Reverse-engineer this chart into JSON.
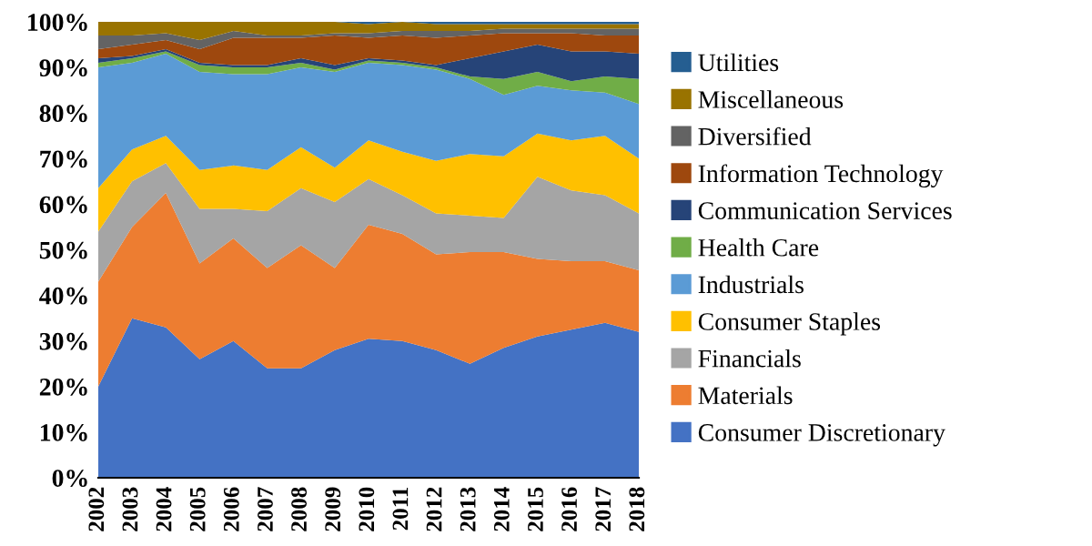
{
  "chart_data": {
    "type": "area",
    "stacked": true,
    "categories": [
      "2002",
      "2003",
      "2004",
      "2005",
      "2006",
      "2007",
      "2008",
      "2009",
      "2010",
      "2011",
      "2012",
      "2013",
      "2014",
      "2015",
      "2016",
      "2017",
      "2018"
    ],
    "series": [
      {
        "name": "Consumer Discretionary",
        "color": "#4472c4",
        "values": [
          20,
          35,
          33,
          26,
          30,
          24,
          24,
          28,
          30.5,
          30,
          28,
          25,
          28.5,
          31,
          32.5,
          34,
          32
        ]
      },
      {
        "name": "Materials",
        "color": "#ed7d31",
        "values": [
          23,
          20,
          29.5,
          21,
          22.5,
          22,
          27,
          18,
          25,
          23.5,
          21,
          24.5,
          21,
          17,
          15,
          13.5,
          13.5
        ]
      },
      {
        "name": "Financials",
        "color": "#a5a5a5",
        "values": [
          11,
          10,
          6.5,
          12,
          6.5,
          12.5,
          12.5,
          14.5,
          10,
          8.5,
          9,
          8,
          7.5,
          18,
          15.5,
          14.5,
          12.5
        ]
      },
      {
        "name": "Consumer Staples",
        "color": "#ffc000",
        "values": [
          9.5,
          7,
          6,
          8.5,
          9.5,
          9,
          9,
          7.5,
          8.5,
          9.5,
          11.5,
          13.5,
          13.5,
          9.5,
          11,
          13,
          12
        ]
      },
      {
        "name": "Industrials",
        "color": "#5b9bd5",
        "values": [
          26.5,
          19,
          18,
          21.5,
          20,
          21,
          17.5,
          21,
          17,
          19,
          20,
          16.5,
          13.5,
          10.5,
          11,
          9.5,
          12
        ]
      },
      {
        "name": "Health Care",
        "color": "#70ad47",
        "values": [
          1,
          1,
          0.5,
          1.5,
          1.5,
          1.5,
          1,
          0.5,
          0.5,
          0.5,
          0.5,
          0.5,
          3.5,
          3,
          2,
          3.5,
          5.5
        ]
      },
      {
        "name": "Communication Services",
        "color": "#264478",
        "values": [
          1,
          0.5,
          0.5,
          0.5,
          0.5,
          0.5,
          1,
          1,
          0.5,
          0.5,
          0.5,
          4,
          6,
          6,
          6.5,
          5.5,
          5.5
        ]
      },
      {
        "name": "Information Technology",
        "color": "#9e480e",
        "values": [
          2,
          2.5,
          2,
          3,
          6,
          6,
          4.5,
          6.5,
          4.5,
          5.5,
          6,
          5,
          4,
          2.5,
          4,
          3.5,
          4
        ]
      },
      {
        "name": "Diversified",
        "color": "#636363",
        "values": [
          3,
          2,
          1.5,
          2,
          1.5,
          0.5,
          0.5,
          0.5,
          1,
          1,
          1.5,
          1,
          1,
          1,
          1,
          1.5,
          1.5
        ]
      },
      {
        "name": "Miscellaneous",
        "color": "#997300",
        "values": [
          3,
          3,
          2.5,
          4,
          2,
          3,
          3,
          2.5,
          2,
          2,
          1.5,
          1.5,
          1,
          1,
          1,
          1,
          1
        ]
      },
      {
        "name": "Utilities",
        "color": "#255e91",
        "values": [
          0,
          0,
          0,
          0,
          0,
          0,
          0,
          0,
          0.5,
          0,
          0.5,
          0.5,
          0.5,
          0.5,
          0.5,
          0.5,
          0.5
        ]
      }
    ],
    "ylim": [
      0,
      100
    ],
    "yticks": [
      {
        "value": 0,
        "label": "0%"
      },
      {
        "value": 10,
        "label": "10%"
      },
      {
        "value": 20,
        "label": "20%"
      },
      {
        "value": 30,
        "label": "30%"
      },
      {
        "value": 40,
        "label": "40%"
      },
      {
        "value": 50,
        "label": "50%"
      },
      {
        "value": 60,
        "label": "60%"
      },
      {
        "value": 70,
        "label": "70%"
      },
      {
        "value": 80,
        "label": "80%"
      },
      {
        "value": 90,
        "label": "90%"
      },
      {
        "value": 100,
        "label": "100%"
      }
    ],
    "legend": "right"
  }
}
